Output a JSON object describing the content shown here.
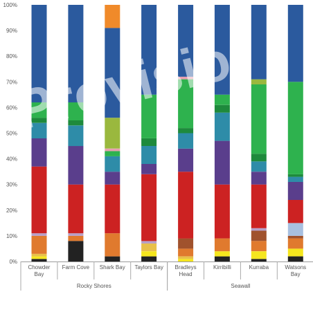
{
  "chart_data": {
    "type": "bar",
    "stacked": "percent",
    "title": "",
    "xlabel": "",
    "ylabel": "",
    "ylim": [
      0,
      100
    ],
    "yticks": [
      "0%",
      "10%",
      "20%",
      "30%",
      "40%",
      "50%",
      "60%",
      "70%",
      "80%",
      "90%",
      "100%"
    ],
    "grid": false,
    "legend": "none",
    "watermark": "Provisio",
    "categories": [
      {
        "label": [
          "Chowder",
          "Bay"
        ],
        "group": "Rocky Shores"
      },
      {
        "label": [
          "Farm Cove"
        ],
        "group": "Rocky Shores"
      },
      {
        "label": [
          "Shark Bay"
        ],
        "group": "Rocky Shores"
      },
      {
        "label": [
          "Taylors Bay"
        ],
        "group": "Rocky Shores"
      },
      {
        "label": [
          "Bradleys",
          "Head"
        ],
        "group": "Seawall"
      },
      {
        "label": [
          "Kirribilli"
        ],
        "group": "Seawall"
      },
      {
        "label": [
          "Kurraba"
        ],
        "group": "Seawall"
      },
      {
        "label": [
          "Watsons",
          "Bay"
        ],
        "group": "Seawall"
      }
    ],
    "groups": [
      "Rocky Shores",
      "Seawall"
    ],
    "stacks": [
      [
        {
          "v": 1,
          "c": "#222222"
        },
        {
          "v": 1,
          "c": "#f5e61e"
        },
        {
          "v": 1,
          "c": "#e8c04a"
        },
        {
          "v": 7,
          "c": "#e07a2e"
        },
        {
          "v": 1,
          "c": "#b7a0c8"
        },
        {
          "v": 26,
          "c": "#cc2222"
        },
        {
          "v": 11,
          "c": "#5a3e8c"
        },
        {
          "v": 6,
          "c": "#2e8ca8"
        },
        {
          "v": 2,
          "c": "#1e8a3c"
        },
        {
          "v": 6,
          "c": "#2eb24e"
        },
        {
          "v": 38,
          "c": "#2b5a9e"
        }
      ],
      [
        {
          "v": 8,
          "c": "#222222"
        },
        {
          "v": 2,
          "c": "#e07a2e"
        },
        {
          "v": 1,
          "c": "#b7a0c8"
        },
        {
          "v": 19,
          "c": "#cc2222"
        },
        {
          "v": 15,
          "c": "#5a3e8c"
        },
        {
          "v": 8,
          "c": "#2e8ca8"
        },
        {
          "v": 2,
          "c": "#1e8a3c"
        },
        {
          "v": 7,
          "c": "#2eb24e"
        },
        {
          "v": 38,
          "c": "#2b5a9e"
        }
      ],
      [
        {
          "v": 2,
          "c": "#222222"
        },
        {
          "v": 9,
          "c": "#e07a2e"
        },
        {
          "v": 19,
          "c": "#cc2222"
        },
        {
          "v": 5,
          "c": "#5a3e8c"
        },
        {
          "v": 6,
          "c": "#2e8ca8"
        },
        {
          "v": 2,
          "c": "#2eb24e"
        },
        {
          "v": 1,
          "c": "#e8a0b0"
        },
        {
          "v": 12,
          "c": "#9ab83e"
        },
        {
          "v": 35,
          "c": "#2b5a9e"
        },
        {
          "v": 9,
          "c": "#f08a2a"
        }
      ],
      [
        {
          "v": 2,
          "c": "#222222"
        },
        {
          "v": 2,
          "c": "#f5e61e"
        },
        {
          "v": 3,
          "c": "#e8c04a"
        },
        {
          "v": 1,
          "c": "#b7a0c8"
        },
        {
          "v": 26,
          "c": "#cc2222"
        },
        {
          "v": 4,
          "c": "#5a3e8c"
        },
        {
          "v": 7,
          "c": "#2e8ca8"
        },
        {
          "v": 3,
          "c": "#1e8a3c"
        },
        {
          "v": 17,
          "c": "#2eb24e"
        },
        {
          "v": 35,
          "c": "#2b5a9e"
        }
      ],
      [
        {
          "v": 1,
          "c": "#f5e61e"
        },
        {
          "v": 1,
          "c": "#e8c04a"
        },
        {
          "v": 3,
          "c": "#e07a2e"
        },
        {
          "v": 4,
          "c": "#a0522d"
        },
        {
          "v": 26,
          "c": "#cc2222"
        },
        {
          "v": 9,
          "c": "#5a3e8c"
        },
        {
          "v": 6,
          "c": "#2e8ca8"
        },
        {
          "v": 2,
          "c": "#1e8a3c"
        },
        {
          "v": 19,
          "c": "#2eb24e"
        },
        {
          "v": 1,
          "c": "#e8a0b0"
        },
        {
          "v": 28,
          "c": "#2b5a9e"
        }
      ],
      [
        {
          "v": 2,
          "c": "#222222"
        },
        {
          "v": 2,
          "c": "#f5e61e"
        },
        {
          "v": 5,
          "c": "#e07a2e"
        },
        {
          "v": 21,
          "c": "#cc2222"
        },
        {
          "v": 17,
          "c": "#5a3e8c"
        },
        {
          "v": 11,
          "c": "#2e8ca8"
        },
        {
          "v": 3,
          "c": "#1e8a3c"
        },
        {
          "v": 4,
          "c": "#2eb24e"
        },
        {
          "v": 35,
          "c": "#2b5a9e"
        }
      ],
      [
        {
          "v": 1,
          "c": "#222222"
        },
        {
          "v": 3,
          "c": "#f5e61e"
        },
        {
          "v": 4,
          "c": "#e07a2e"
        },
        {
          "v": 4,
          "c": "#a0522d"
        },
        {
          "v": 1,
          "c": "#b7a0c8"
        },
        {
          "v": 17,
          "c": "#cc2222"
        },
        {
          "v": 5,
          "c": "#5a3e8c"
        },
        {
          "v": 4,
          "c": "#2e8ca8"
        },
        {
          "v": 3,
          "c": "#1e8a3c"
        },
        {
          "v": 27,
          "c": "#2eb24e"
        },
        {
          "v": 2,
          "c": "#9ab83e"
        },
        {
          "v": 29,
          "c": "#2b5a9e"
        }
      ],
      [
        {
          "v": 2,
          "c": "#222222"
        },
        {
          "v": 3,
          "c": "#f5e61e"
        },
        {
          "v": 4,
          "c": "#e07a2e"
        },
        {
          "v": 1,
          "c": "#a0522d"
        },
        {
          "v": 5,
          "c": "#a8c0e0"
        },
        {
          "v": 9,
          "c": "#cc2222"
        },
        {
          "v": 7,
          "c": "#5a3e8c"
        },
        {
          "v": 2,
          "c": "#2e8ca8"
        },
        {
          "v": 1,
          "c": "#1e8a3c"
        },
        {
          "v": 36,
          "c": "#2eb24e"
        },
        {
          "v": 30,
          "c": "#2b5a9e"
        }
      ]
    ]
  }
}
